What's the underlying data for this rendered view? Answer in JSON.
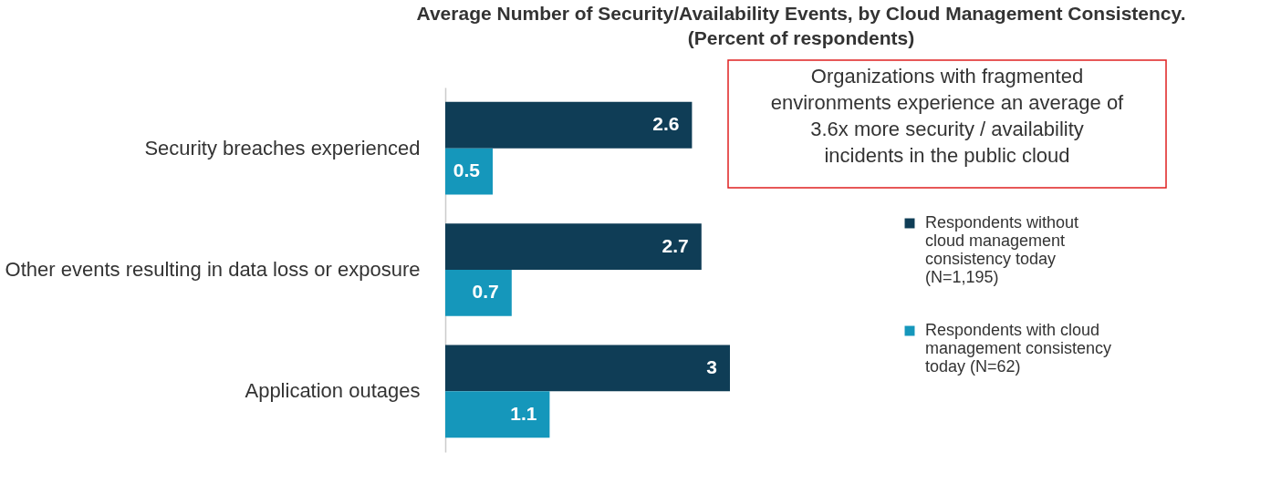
{
  "chart_data": {
    "type": "bar",
    "orientation": "horizontal",
    "title": "Average Number of Security/Availability Events, by Cloud Management Consistency.",
    "subtitle": "(Percent of respondents)",
    "categories": [
      "Security breaches experienced",
      "Other events resulting in data loss or exposure",
      "Application outages"
    ],
    "series": [
      {
        "name": "Respondents without cloud management consistency today (N=1,195)",
        "color": "#0f3d56",
        "values": [
          2.6,
          2.7,
          3
        ]
      },
      {
        "name": "Respondents with cloud management consistency today (N=62)",
        "color": "#1597bb",
        "values": [
          0.5,
          0.7,
          1.1
        ]
      }
    ],
    "data_labels": true,
    "legend": "right",
    "grid": false,
    "annotations": [
      "Organizations with fragmented environments experience an average of 3.6x more security / availability incidents in the public cloud"
    ]
  }
}
